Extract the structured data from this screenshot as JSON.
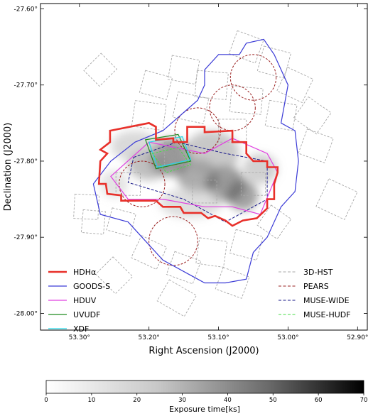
{
  "chart_data": {
    "type": "map",
    "xlabel": "Right Ascension (J2000)",
    "ylabel": "Declination (J2000)",
    "x_ticks": [
      {
        "v": 53.3,
        "label": "53.30°"
      },
      {
        "v": 53.2,
        "label": "53.20°"
      },
      {
        "v": 53.1,
        "label": "53.10°"
      },
      {
        "v": 53.0,
        "label": "53.00°"
      },
      {
        "v": 52.9,
        "label": "52.90°"
      }
    ],
    "y_ticks": [
      {
        "v": -27.6,
        "label": "-27.60°"
      },
      {
        "v": -27.7,
        "label": "-27.70°"
      },
      {
        "v": -27.8,
        "label": "-27.80°"
      },
      {
        "v": -27.9,
        "label": "-27.90°"
      },
      {
        "v": -28.0,
        "label": "-28.00°"
      }
    ],
    "xlim": [
      53.356,
      52.886
    ],
    "ylim": [
      -28.022,
      -27.593
    ],
    "legend_left": [
      {
        "label": "HDHα",
        "color": "#e8302a",
        "style": "solid",
        "width": 2.5
      },
      {
        "label": "GOODS-S",
        "color": "#3a3ad6",
        "style": "solid",
        "width": 1.2
      },
      {
        "label": "HDUV",
        "color": "#e040e0",
        "style": "solid",
        "width": 1.2
      },
      {
        "label": "UVUDF",
        "color": "#1e8a1e",
        "style": "solid",
        "width": 1.2
      },
      {
        "label": "XDF",
        "color": "#22d8e8",
        "style": "solid",
        "width": 1.2
      }
    ],
    "legend_right": [
      {
        "label": "3D-HST",
        "color": "#a8a8a8",
        "style": "dashed",
        "width": 1.0
      },
      {
        "label": "PEARS",
        "color": "#9a2020",
        "style": "dashed",
        "width": 1.0
      },
      {
        "label": "MUSE-WIDE",
        "color": "#1a1a8a",
        "style": "dashed",
        "width": 1.0
      },
      {
        "label": "MUSE-HUDF",
        "color": "#44dd44",
        "style": "dashed",
        "width": 1.0
      }
    ],
    "colorbar": {
      "title": "Exposure time[ks]",
      "min": 0,
      "max": 70,
      "ticks": [
        0,
        10,
        20,
        30,
        40,
        50,
        60,
        70
      ]
    },
    "footprints": {
      "HDHa": [
        [
          53.256,
          -27.76
        ],
        [
          53.2,
          -27.75
        ],
        [
          53.19,
          -27.755
        ],
        [
          53.19,
          -27.772
        ],
        [
          53.165,
          -27.77
        ],
        [
          53.165,
          -27.775
        ],
        [
          53.145,
          -27.775
        ],
        [
          53.145,
          -27.755
        ],
        [
          53.12,
          -27.755
        ],
        [
          53.12,
          -27.762
        ],
        [
          53.08,
          -27.76
        ],
        [
          53.08,
          -27.775
        ],
        [
          53.06,
          -27.775
        ],
        [
          53.06,
          -27.79
        ],
        [
          53.05,
          -27.8
        ],
        [
          53.03,
          -27.8
        ],
        [
          53.03,
          -27.808
        ],
        [
          53.015,
          -27.808
        ],
        [
          53.015,
          -27.815
        ],
        [
          53.02,
          -27.83
        ],
        [
          53.02,
          -27.85
        ],
        [
          53.03,
          -27.85
        ],
        [
          53.03,
          -27.862
        ],
        [
          53.045,
          -27.875
        ],
        [
          53.065,
          -27.878
        ],
        [
          53.08,
          -27.885
        ],
        [
          53.09,
          -27.878
        ],
        [
          53.105,
          -27.872
        ],
        [
          53.115,
          -27.875
        ],
        [
          53.125,
          -27.868
        ],
        [
          53.15,
          -27.868
        ],
        [
          53.155,
          -27.86
        ],
        [
          53.18,
          -27.86
        ],
        [
          53.19,
          -27.852
        ],
        [
          53.24,
          -27.852
        ],
        [
          53.24,
          -27.845
        ],
        [
          53.26,
          -27.843
        ],
        [
          53.262,
          -27.83
        ],
        [
          53.272,
          -27.83
        ],
        [
          53.27,
          -27.8
        ],
        [
          53.26,
          -27.79
        ],
        [
          53.27,
          -27.785
        ],
        [
          53.256,
          -27.775
        ]
      ],
      "GOODSS": [
        [
          53.18,
          -27.76
        ],
        [
          53.13,
          -27.72
        ],
        [
          53.12,
          -27.7
        ],
        [
          53.12,
          -27.68
        ],
        [
          53.1,
          -27.66
        ],
        [
          53.07,
          -27.66
        ],
        [
          53.06,
          -27.645
        ],
        [
          53.035,
          -27.64
        ],
        [
          53.02,
          -27.66
        ],
        [
          53.0,
          -27.7
        ],
        [
          53.01,
          -27.75
        ],
        [
          52.99,
          -27.76
        ],
        [
          52.985,
          -27.8
        ],
        [
          52.99,
          -27.84
        ],
        [
          53.01,
          -27.86
        ],
        [
          53.03,
          -27.9
        ],
        [
          53.05,
          -27.92
        ],
        [
          53.06,
          -27.955
        ],
        [
          53.09,
          -27.96
        ],
        [
          53.12,
          -27.96
        ],
        [
          53.14,
          -27.95
        ],
        [
          53.18,
          -27.93
        ],
        [
          53.21,
          -27.9
        ],
        [
          53.23,
          -27.88
        ],
        [
          53.27,
          -27.87
        ],
        [
          53.28,
          -27.83
        ],
        [
          53.255,
          -27.8
        ],
        [
          53.22,
          -27.775
        ]
      ],
      "HDUV": [
        [
          53.255,
          -27.82
        ],
        [
          53.2,
          -27.775
        ],
        [
          53.12,
          -27.79
        ],
        [
          53.08,
          -27.77
        ],
        [
          53.03,
          -27.79
        ],
        [
          53.015,
          -27.815
        ],
        [
          53.04,
          -27.87
        ],
        [
          53.08,
          -27.86
        ],
        [
          53.12,
          -27.86
        ],
        [
          53.18,
          -27.85
        ],
        [
          53.23,
          -27.85
        ]
      ],
      "UVUDF": [
        [
          53.205,
          -27.772
        ],
        [
          53.158,
          -27.765
        ],
        [
          53.14,
          -27.8
        ],
        [
          53.19,
          -27.81
        ]
      ],
      "XDF": [
        [
          53.2,
          -27.775
        ],
        [
          53.152,
          -27.768
        ],
        [
          53.14,
          -27.798
        ],
        [
          53.188,
          -27.808
        ]
      ],
      "MUSEWIDE": [
        [
          53.222,
          -27.795
        ],
        [
          53.16,
          -27.775
        ],
        [
          53.09,
          -27.79
        ],
        [
          53.03,
          -27.8
        ],
        [
          53.03,
          -27.85
        ],
        [
          53.09,
          -27.88
        ],
        [
          53.15,
          -27.85
        ],
        [
          53.23,
          -27.828
        ]
      ],
      "MUSEHUDF": [
        [
          53.195,
          -27.79
        ],
        [
          53.158,
          -27.782
        ],
        [
          53.14,
          -27.805
        ],
        [
          53.175,
          -27.815
        ]
      ],
      "PEARS": [
        {
          "cx": 53.165,
          "cy": -27.905,
          "r": 0.032
        },
        {
          "cx": 53.21,
          "cy": -27.83,
          "r": 0.03
        },
        {
          "cx": 53.13,
          "cy": -27.76,
          "r": 0.03
        },
        {
          "cx": 53.08,
          "cy": -27.73,
          "r": 0.03
        },
        {
          "cx": 53.05,
          "cy": -27.69,
          "r": 0.03
        }
      ],
      "exposure_blobs": [
        {
          "cx": 53.17,
          "cy": -27.795,
          "rx": 0.03,
          "ry": 0.025,
          "level": 55
        },
        {
          "cx": 53.13,
          "cy": -27.82,
          "rx": 0.03,
          "ry": 0.022,
          "level": 45
        },
        {
          "cx": 53.09,
          "cy": -27.83,
          "rx": 0.028,
          "ry": 0.024,
          "level": 55
        },
        {
          "cx": 53.065,
          "cy": -27.845,
          "rx": 0.022,
          "ry": 0.02,
          "level": 50
        },
        {
          "cx": 53.2,
          "cy": -27.805,
          "rx": 0.03,
          "ry": 0.02,
          "level": 35
        },
        {
          "cx": 53.11,
          "cy": -27.79,
          "rx": 0.04,
          "ry": 0.03,
          "level": 30
        },
        {
          "cx": 53.04,
          "cy": -27.81,
          "rx": 0.025,
          "ry": 0.02,
          "level": 25
        },
        {
          "cx": 53.22,
          "cy": -27.78,
          "rx": 0.035,
          "ry": 0.02,
          "level": 20
        },
        {
          "cx": 53.14,
          "cy": -27.855,
          "rx": 0.045,
          "ry": 0.02,
          "level": 18
        },
        {
          "cx": 53.25,
          "cy": -27.83,
          "rx": 0.02,
          "ry": 0.018,
          "level": 15
        }
      ],
      "hst_tiles": [
        {
          "cx": 53.27,
          "cy": -27.68,
          "w": 0.032,
          "h": 0.032,
          "rot": 45
        },
        {
          "cx": 53.19,
          "cy": -27.7,
          "w": 0.04,
          "h": 0.03,
          "rot": 15
        },
        {
          "cx": 53.15,
          "cy": -27.68,
          "w": 0.04,
          "h": 0.032,
          "rot": 10
        },
        {
          "cx": 53.11,
          "cy": -27.7,
          "w": 0.045,
          "h": 0.035,
          "rot": 5
        },
        {
          "cx": 53.06,
          "cy": -27.65,
          "w": 0.04,
          "h": 0.032,
          "rot": 20
        },
        {
          "cx": 53.02,
          "cy": -27.67,
          "w": 0.04,
          "h": 0.034,
          "rot": 15
        },
        {
          "cx": 52.99,
          "cy": -27.7,
          "w": 0.04,
          "h": 0.034,
          "rot": 25
        },
        {
          "cx": 52.965,
          "cy": -27.74,
          "w": 0.04,
          "h": 0.034,
          "rot": 35
        },
        {
          "cx": 52.96,
          "cy": -27.78,
          "w": 0.04,
          "h": 0.034,
          "rot": 20
        },
        {
          "cx": 53.01,
          "cy": -27.74,
          "w": 0.04,
          "h": 0.034,
          "rot": 10
        },
        {
          "cx": 53.06,
          "cy": -27.72,
          "w": 0.045,
          "h": 0.034,
          "rot": 5
        },
        {
          "cx": 53.14,
          "cy": -27.73,
          "w": 0.045,
          "h": 0.034,
          "rot": 12
        },
        {
          "cx": 53.2,
          "cy": -27.74,
          "w": 0.045,
          "h": 0.034,
          "rot": 8
        },
        {
          "cx": 53.08,
          "cy": -27.76,
          "w": 0.04,
          "h": 0.03,
          "rot": 0
        },
        {
          "cx": 52.93,
          "cy": -27.85,
          "w": 0.045,
          "h": 0.04,
          "rot": 25
        },
        {
          "cx": 53.29,
          "cy": -27.86,
          "w": 0.035,
          "h": 0.032,
          "rot": 3
        },
        {
          "cx": 53.28,
          "cy": -27.88,
          "w": 0.032,
          "h": 0.03,
          "rot": 5
        },
        {
          "cx": 53.24,
          "cy": -27.88,
          "w": 0.035,
          "h": 0.03,
          "rot": 15
        },
        {
          "cx": 53.2,
          "cy": -27.92,
          "w": 0.04,
          "h": 0.032,
          "rot": 25
        },
        {
          "cx": 53.15,
          "cy": -27.94,
          "w": 0.04,
          "h": 0.032,
          "rot": 20
        },
        {
          "cx": 53.11,
          "cy": -27.92,
          "w": 0.04,
          "h": 0.034,
          "rot": 8
        },
        {
          "cx": 53.06,
          "cy": -27.91,
          "w": 0.04,
          "h": 0.032,
          "rot": 15
        },
        {
          "cx": 53.02,
          "cy": -27.88,
          "w": 0.035,
          "h": 0.032,
          "rot": 35
        },
        {
          "cx": 53.25,
          "cy": -27.95,
          "w": 0.04,
          "h": 0.032,
          "rot": 45
        },
        {
          "cx": 53.16,
          "cy": -27.98,
          "w": 0.045,
          "h": 0.032,
          "rot": 30
        },
        {
          "cx": 53.08,
          "cy": -27.96,
          "w": 0.04,
          "h": 0.03,
          "rot": 20
        },
        {
          "cx": 53.23,
          "cy": -27.83,
          "w": 0.035,
          "h": 0.03,
          "rot": 0
        },
        {
          "cx": 53.12,
          "cy": -27.84,
          "w": 0.035,
          "h": 0.03,
          "rot": 0
        },
        {
          "cx": 53.05,
          "cy": -27.83,
          "w": 0.035,
          "h": 0.03,
          "rot": 0
        },
        {
          "cx": 53.16,
          "cy": -27.79,
          "w": 0.035,
          "h": 0.03,
          "rot": 0
        }
      ]
    }
  }
}
